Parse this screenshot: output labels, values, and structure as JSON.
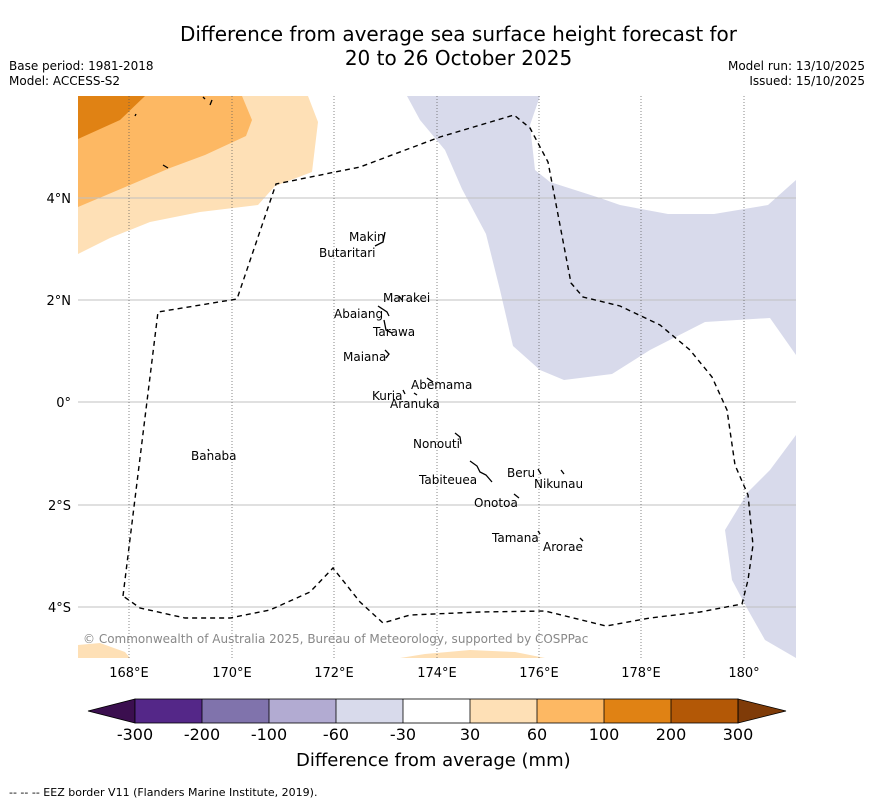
{
  "title": {
    "line1": "Difference from average sea surface height forecast for",
    "line2": "20 to 26 October 2025"
  },
  "meta_left": {
    "base_period": "Base period: 1981-2018",
    "model": "Model: ACCESS-S2"
  },
  "meta_right": {
    "model_run": "Model run: 13/10/2025",
    "issued": "Issued: 15/10/2025"
  },
  "map": {
    "lon_ticks": [
      "168°E",
      "170°E",
      "172°E",
      "174°E",
      "176°E",
      "178°E",
      "180°"
    ],
    "lat_ticks": [
      "4°N",
      "2°N",
      "0°",
      "2°S",
      "4°S"
    ],
    "islands": {
      "makin": "Makin",
      "butaritari": "Butaritari",
      "marakei": "Marakei",
      "abaiang": "Abaiang",
      "tarawa": "Tarawa",
      "maiana": "Maiana",
      "abemama": "Abemama",
      "kuria": "Kuria",
      "aranuka": "Aranuka",
      "nonouti": "Nonouti",
      "banaba": "Banaba",
      "beru": "Beru",
      "nikunau": "Nikunau",
      "tabiteuea": "Tabiteuea",
      "onotoa": "Onotoa",
      "tamana": "Tamana",
      "arorae": "Arorae"
    },
    "copyright": "© Commonwealth of Australia 2025, Bureau of Meteorology, supported by COSPPac"
  },
  "colorbar": {
    "title": "Difference from average (mm)",
    "ticks": [
      "-300",
      "-200",
      "-100",
      "-60",
      "-30",
      "30",
      "60",
      "100",
      "200",
      "300"
    ],
    "colors": {
      "below_min": "#3b0f4f",
      "n300_n200": "#542788",
      "n200_n100": "#8073ac",
      "n100_n60": "#b2abd2",
      "n60_n30": "#d8daeb",
      "n30_30": "#ffffff",
      "p30_60": "#fee0b6",
      "p60_100": "#fdb863",
      "p100_200": "#e08214",
      "p200_300": "#b35806",
      "above_max": "#7f3b08"
    }
  },
  "footnote": "--  --  -- EEZ border V11 (Flanders Marine Institute, 2019)."
}
